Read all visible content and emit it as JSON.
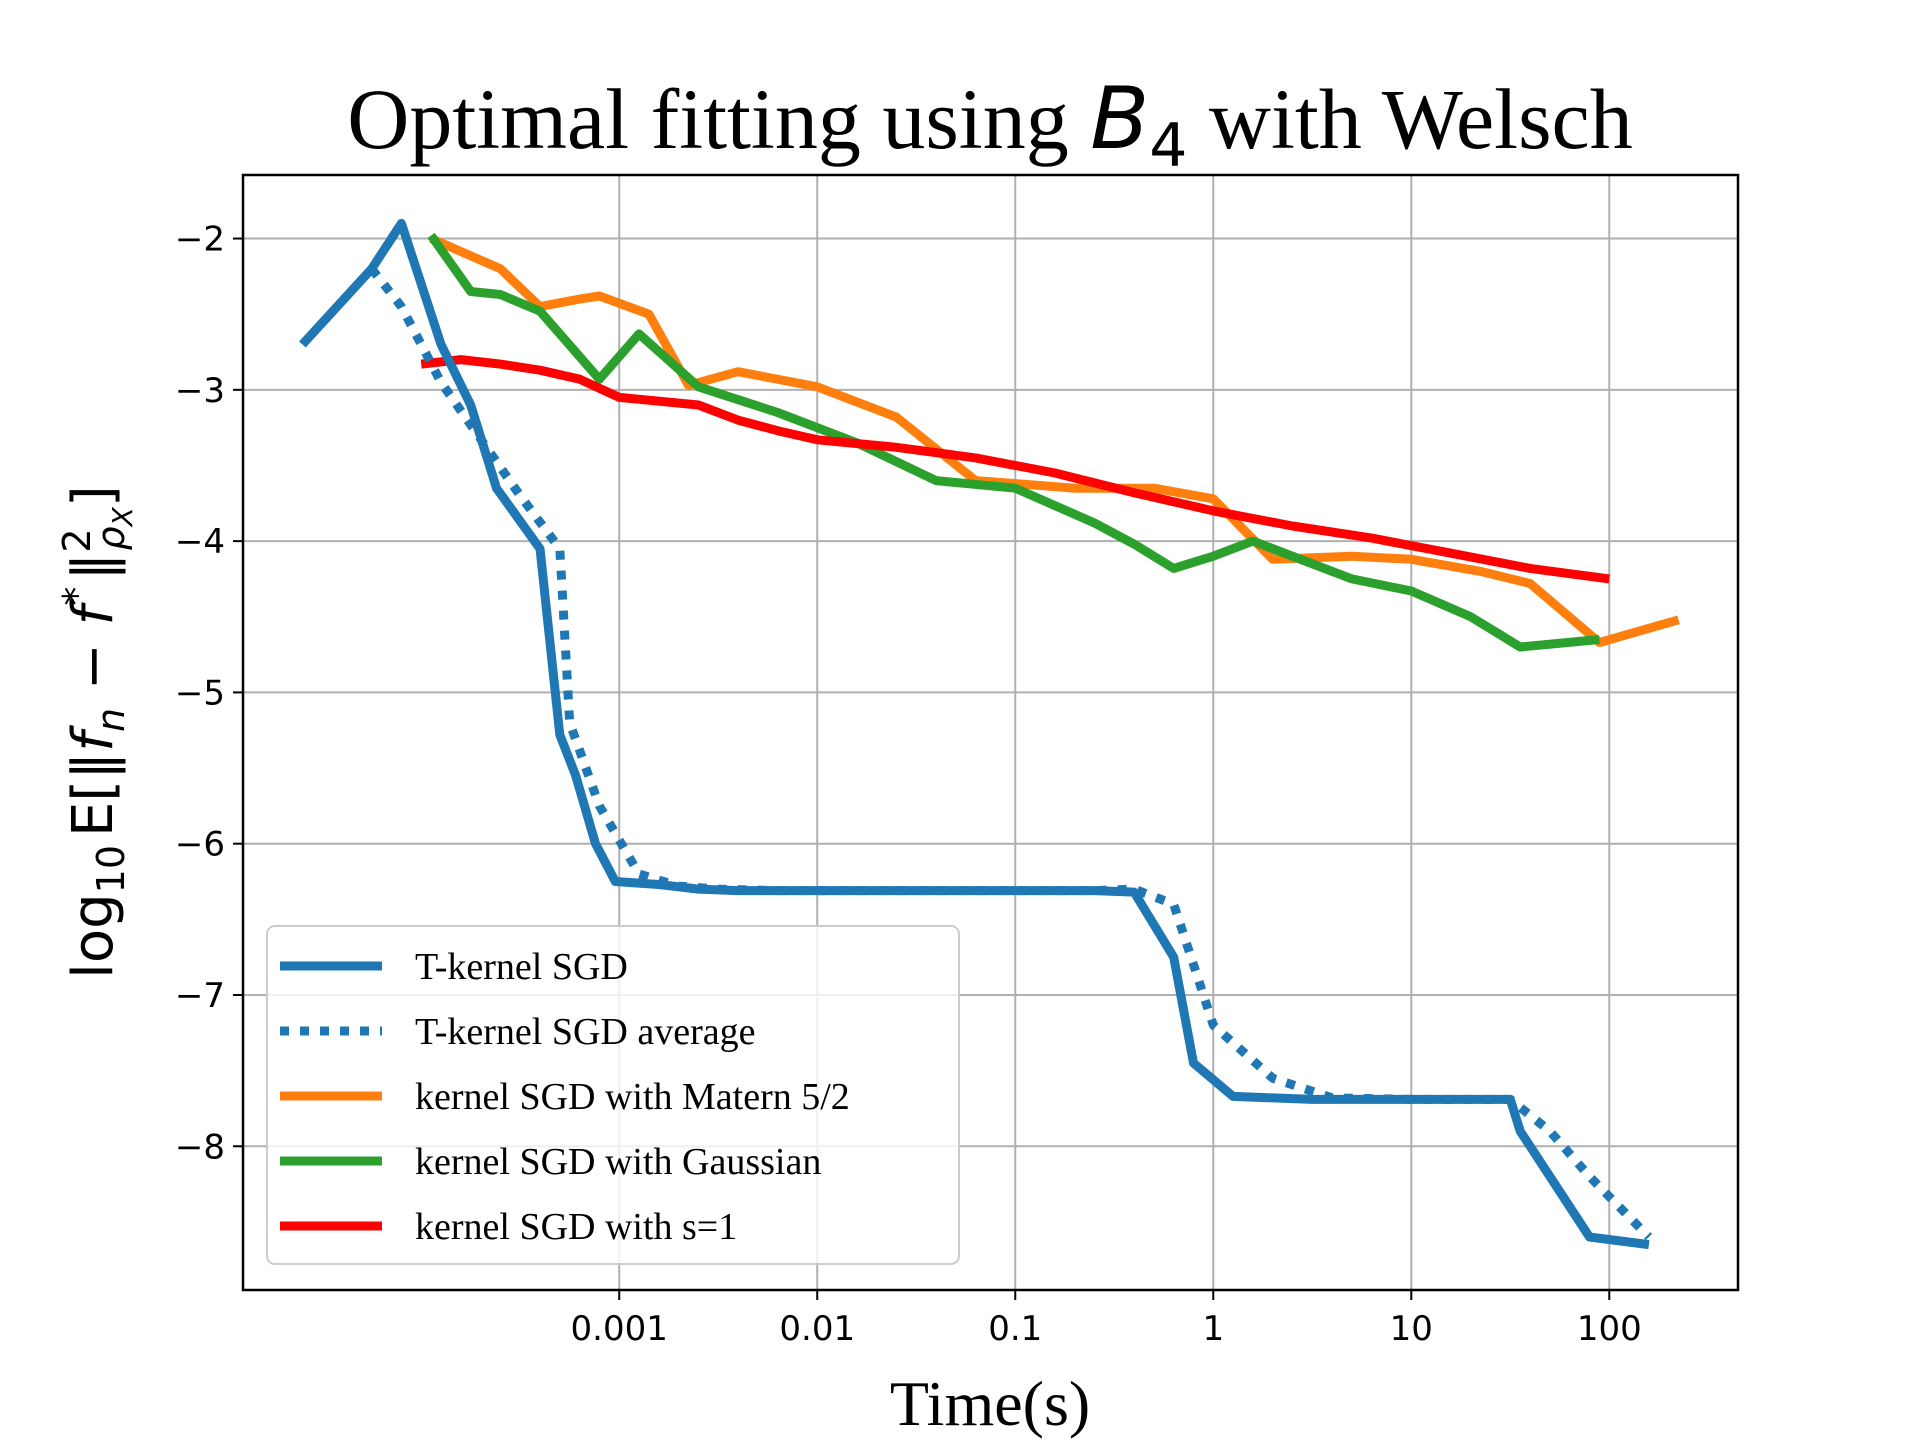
{
  "chart_data": {
    "type": "line",
    "title": {
      "prefix": "Optimal fitting using ",
      "symbol": "B",
      "subscript": "4",
      "suffix": " with Welsch"
    },
    "xlabel": "Time(s)",
    "ylabel": {
      "log": "log",
      "log_sub": "10",
      "expect": "E",
      "lbracket": "[",
      "norm_open": "‖",
      "f_n": "f",
      "f_n_sub": "n",
      "minus": " − ",
      "f_star": "f",
      "star": "*",
      "norm_close": "‖",
      "sq": "2",
      "rho": "ρ",
      "rho_sub": "X",
      "rbracket": "]"
    },
    "x_scale": "log10",
    "xlim_log10": [
      -4.9,
      2.65
    ],
    "ylim": [
      -8.95,
      -1.58
    ],
    "x_ticks": [
      {
        "label": "0.001",
        "log10": -3
      },
      {
        "label": "0.01",
        "log10": -2
      },
      {
        "label": "0.1",
        "log10": -1
      },
      {
        "label": "1",
        "log10": 0
      },
      {
        "label": "10",
        "log10": 1
      },
      {
        "label": "100",
        "log10": 2
      }
    ],
    "y_ticks": [
      {
        "label": "−2",
        "value": -2
      },
      {
        "label": "−3",
        "value": -3
      },
      {
        "label": "−4",
        "value": -4
      },
      {
        "label": "−5",
        "value": -5
      },
      {
        "label": "−6",
        "value": -6
      },
      {
        "label": "−7",
        "value": -7
      },
      {
        "label": "−8",
        "value": -8
      }
    ],
    "grid": true,
    "legend_position": "lower-left",
    "series": [
      {
        "name": "T-kernel SGD",
        "color": "#1f77b4",
        "style": "solid",
        "x_log10": [
          -4.6,
          -4.25,
          -4.1,
          -3.9,
          -3.75,
          -3.62,
          -3.4,
          -3.3,
          -3.22,
          -3.12,
          -3.02,
          -2.8,
          -2.6,
          -2.4,
          -2.2,
          -2.0,
          -1.6,
          -1.2,
          -0.8,
          -0.6,
          -0.4,
          -0.2,
          -0.1,
          0.1,
          0.5,
          0.9,
          1.3,
          1.5,
          1.55,
          1.7,
          1.9,
          2.2
        ],
        "values": [
          -2.7,
          -2.2,
          -1.9,
          -2.7,
          -3.1,
          -3.65,
          -4.05,
          -5.28,
          -5.55,
          -6.0,
          -6.25,
          -6.27,
          -6.3,
          -6.31,
          -6.31,
          -6.31,
          -6.31,
          -6.31,
          -6.31,
          -6.31,
          -6.32,
          -6.75,
          -7.45,
          -7.67,
          -7.69,
          -7.69,
          -7.69,
          -7.69,
          -7.9,
          -8.2,
          -8.6,
          -8.65
        ]
      },
      {
        "name": "T-kernel SGD average",
        "color": "#1f77b4",
        "style": "dotted",
        "x_log10": [
          -4.25,
          -4.1,
          -3.9,
          -3.5,
          -3.3,
          -3.25,
          -3.1,
          -2.9,
          -2.7,
          -2.5,
          -2.2,
          -2.0,
          -1.6,
          -1.2,
          -0.8,
          -0.6,
          -0.4,
          -0.2,
          0.0,
          0.3,
          0.6,
          1.0,
          1.3,
          1.5,
          1.7,
          1.9,
          2.2
        ],
        "values": [
          -2.2,
          -2.45,
          -2.95,
          -3.7,
          -4.05,
          -5.2,
          -5.75,
          -6.2,
          -6.28,
          -6.3,
          -6.31,
          -6.31,
          -6.31,
          -6.31,
          -6.31,
          -6.31,
          -6.3,
          -6.4,
          -7.2,
          -7.55,
          -7.68,
          -7.69,
          -7.69,
          -7.69,
          -7.9,
          -8.2,
          -8.6
        ]
      },
      {
        "name": "kernel SGD with Matern 5/2",
        "color": "#ff7f0e",
        "style": "solid",
        "x_log10": [
          -3.95,
          -3.6,
          -3.4,
          -3.2,
          -3.1,
          -2.85,
          -2.65,
          -2.4,
          -2.0,
          -1.6,
          -1.2,
          -1.0,
          -0.7,
          -0.3,
          0.0,
          0.3,
          0.7,
          1.0,
          1.35,
          1.6,
          1.95,
          2.35
        ],
        "values": [
          -2.0,
          -2.2,
          -2.45,
          -2.4,
          -2.38,
          -2.5,
          -2.97,
          -2.88,
          -2.98,
          -3.18,
          -3.6,
          -3.62,
          -3.65,
          -3.65,
          -3.72,
          -4.12,
          -4.1,
          -4.12,
          -4.2,
          -4.28,
          -4.67,
          -4.52
        ]
      },
      {
        "name": "kernel SGD with Gaussian",
        "color": "#2ca02c",
        "style": "solid",
        "x_log10": [
          -3.95,
          -3.75,
          -3.6,
          -3.4,
          -3.1,
          -2.9,
          -2.6,
          -2.2,
          -1.8,
          -1.4,
          -1.0,
          -0.6,
          -0.4,
          -0.2,
          0.0,
          0.2,
          0.7,
          1.0,
          1.3,
          1.45,
          1.55,
          1.95
        ],
        "values": [
          -1.98,
          -2.35,
          -2.37,
          -2.48,
          -2.93,
          -2.63,
          -2.98,
          -3.15,
          -3.35,
          -3.6,
          -3.65,
          -3.88,
          -4.02,
          -4.18,
          -4.1,
          -4.0,
          -4.25,
          -4.33,
          -4.5,
          -4.62,
          -4.7,
          -4.65
        ]
      },
      {
        "name": "kernel SGD with s=1",
        "color": "#ff0000",
        "style": "solid",
        "x_log10": [
          -4.0,
          -3.8,
          -3.6,
          -3.4,
          -3.2,
          -3.0,
          -2.6,
          -2.4,
          -2.2,
          -2.0,
          -1.6,
          -1.2,
          -0.8,
          -0.4,
          0.0,
          0.4,
          0.8,
          1.2,
          1.6,
          2.0
        ],
        "values": [
          -2.83,
          -2.8,
          -2.83,
          -2.87,
          -2.93,
          -3.05,
          -3.1,
          -3.2,
          -3.27,
          -3.33,
          -3.38,
          -3.45,
          -3.55,
          -3.68,
          -3.8,
          -3.9,
          -3.98,
          -4.08,
          -4.18,
          -4.25
        ]
      }
    ]
  }
}
